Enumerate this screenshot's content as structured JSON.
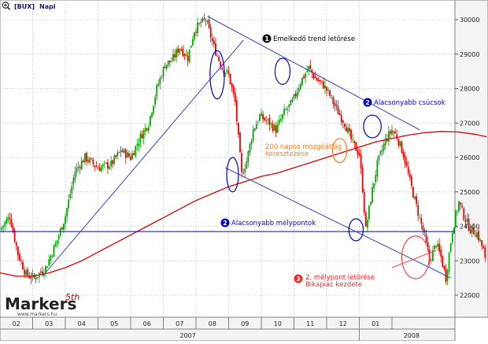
{
  "header": {
    "label": "[BUX]",
    "period": "Napi"
  },
  "icons": {
    "zoom": "zoom-icon"
  },
  "brand": {
    "name": "Markers",
    "superscript": "5th",
    "url": "www.markers.hu"
  },
  "chart_data": {
    "type": "candlestick",
    "y_axis": {
      "ticks": [
        "30000",
        "29000",
        "28000",
        "27000",
        "26000",
        "25000",
        "24000",
        "23000",
        "22000"
      ],
      "range": [
        21700,
        30300
      ],
      "position": "right"
    },
    "x_axis": {
      "month_labels": [
        "02",
        "03",
        "04",
        "05",
        "06",
        "07",
        "08",
        "09",
        "10",
        "11",
        "12",
        "01"
      ],
      "year_labels": [
        "2007",
        "2008"
      ]
    },
    "price_path": [
      [
        0.0,
        23900
      ],
      [
        0.3,
        24300
      ],
      [
        0.55,
        23200
      ],
      [
        0.8,
        22600
      ],
      [
        1.05,
        22500
      ],
      [
        1.4,
        22800
      ],
      [
        1.75,
        23600
      ],
      [
        2.0,
        24300
      ],
      [
        2.3,
        25600
      ],
      [
        2.6,
        26000
      ],
      [
        3.0,
        25700
      ],
      [
        3.4,
        25800
      ],
      [
        3.7,
        26200
      ],
      [
        4.0,
        26000
      ],
      [
        4.3,
        26600
      ],
      [
        4.55,
        27000
      ],
      [
        4.8,
        28000
      ],
      [
        5.05,
        28700
      ],
      [
        5.25,
        28800
      ],
      [
        5.5,
        29200
      ],
      [
        5.75,
        28900
      ],
      [
        5.95,
        29700
      ],
      [
        6.15,
        29900
      ],
      [
        6.3,
        30000
      ],
      [
        6.55,
        29200
      ],
      [
        6.8,
        28600
      ],
      [
        7.0,
        28400
      ],
      [
        7.2,
        27600
      ],
      [
        7.4,
        25500
      ],
      [
        7.55,
        25900
      ],
      [
        7.75,
        26800
      ],
      [
        7.95,
        27200
      ],
      [
        8.25,
        27000
      ],
      [
        8.45,
        26800
      ],
      [
        8.7,
        27300
      ],
      [
        8.95,
        27600
      ],
      [
        9.2,
        28200
      ],
      [
        9.45,
        28600
      ],
      [
        9.65,
        28300
      ],
      [
        9.9,
        28100
      ],
      [
        10.1,
        27800
      ],
      [
        10.3,
        27400
      ],
      [
        10.55,
        27000
      ],
      [
        10.8,
        26400
      ],
      [
        11.0,
        26100
      ],
      [
        11.1,
        25100
      ],
      [
        11.2,
        23900
      ],
      [
        11.35,
        24800
      ],
      [
        11.55,
        25800
      ],
      [
        11.8,
        26500
      ],
      [
        12.0,
        26800
      ],
      [
        12.15,
        26600
      ],
      [
        12.35,
        26100
      ],
      [
        12.55,
        25300
      ],
      [
        12.8,
        24400
      ],
      [
        13.0,
        23700
      ],
      [
        13.15,
        23000
      ],
      [
        13.35,
        23500
      ],
      [
        13.5,
        23100
      ],
      [
        13.65,
        22500
      ],
      [
        13.85,
        23900
      ],
      [
        14.05,
        24700
      ],
      [
        14.2,
        24300
      ],
      [
        14.4,
        23900
      ],
      [
        14.6,
        23800
      ],
      [
        14.8,
        23300
      ],
      [
        14.9,
        22700
      ]
    ],
    "ma200": [
      [
        0.0,
        22650
      ],
      [
        0.5,
        22550
      ],
      [
        1.0,
        22550
      ],
      [
        1.5,
        22650
      ],
      [
        2.0,
        22800
      ],
      [
        2.5,
        23000
      ],
      [
        3.0,
        23250
      ],
      [
        3.5,
        23500
      ],
      [
        4.0,
        23750
      ],
      [
        4.5,
        24000
      ],
      [
        5.0,
        24250
      ],
      [
        5.5,
        24500
      ],
      [
        6.0,
        24750
      ],
      [
        6.5,
        24950
      ],
      [
        7.0,
        25150
      ],
      [
        7.5,
        25300
      ],
      [
        8.0,
        25450
      ],
      [
        8.5,
        25550
      ],
      [
        9.0,
        25700
      ],
      [
        9.5,
        25850
      ],
      [
        10.0,
        26000
      ],
      [
        10.5,
        26150
      ],
      [
        11.0,
        26300
      ],
      [
        11.5,
        26450
      ],
      [
        12.0,
        26550
      ],
      [
        12.5,
        26650
      ],
      [
        13.0,
        26720
      ],
      [
        13.5,
        26750
      ],
      [
        14.0,
        26740
      ],
      [
        14.5,
        26680
      ],
      [
        14.9,
        26600
      ]
    ],
    "horizontal_line": {
      "y": 23850,
      "color": "#0000cc"
    },
    "trend_lines": [
      {
        "name": "rising-trendline",
        "from": [
          1.3,
          22550
        ],
        "to": [
          7.45,
          29400
        ],
        "color": "#3344cc"
      },
      {
        "name": "lower-highs-line",
        "from": [
          6.35,
          30100
        ],
        "to": [
          12.85,
          26800
        ],
        "color": "#3344cc"
      },
      {
        "name": "lower-lows-line",
        "from": [
          6.9,
          25700
        ],
        "to": [
          13.8,
          22500
        ],
        "color": "#3344cc"
      },
      {
        "name": "second-low-break-line",
        "from": [
          12.0,
          22800
        ],
        "to": [
          13.35,
          23300
        ],
        "color": "#ff4444"
      }
    ],
    "ellipses": [
      {
        "name": "trend-break-ellipse",
        "center": [
          6.65,
          28400
        ],
        "rx": 0.22,
        "ry": 700,
        "color": "#0000cc"
      },
      {
        "name": "lower-high-1-ellipse",
        "center": [
          8.65,
          28500
        ],
        "rx": 0.23,
        "ry": 380,
        "color": "#0000cc"
      },
      {
        "name": "lower-high-2-ellipse",
        "center": [
          11.4,
          26900
        ],
        "rx": 0.27,
        "ry": 330,
        "color": "#0000cc"
      },
      {
        "name": "lower-low-1-ellipse",
        "center": [
          7.12,
          25500
        ],
        "rx": 0.18,
        "ry": 500,
        "color": "#0000cc"
      },
      {
        "name": "lower-low-2-ellipse",
        "center": [
          10.9,
          23900
        ],
        "rx": 0.22,
        "ry": 320,
        "color": "#0000cc"
      },
      {
        "name": "ma-cross-ellipse",
        "center": [
          10.4,
          26200
        ],
        "rx": 0.22,
        "ry": 350,
        "color": "#ff7722"
      },
      {
        "name": "second-low-ellipse",
        "center": [
          12.72,
          23100
        ],
        "rx": 0.42,
        "ry": 620,
        "color": "#ff4444"
      }
    ],
    "annotations": [
      {
        "name": "annotation-trend-break",
        "badge": "1",
        "text": "Emelkedő trend letörése",
        "color": "#000000"
      },
      {
        "name": "annotation-lower-highs",
        "badge": "2",
        "text": "Alacsonyabb csúcsok",
        "color": "#0000cc"
      },
      {
        "name": "annotation-lower-lows",
        "badge": "2",
        "text": "Alacsonyabb mélypontok",
        "color": "#0000cc"
      },
      {
        "name": "annotation-ma-cross",
        "badge": "",
        "text": "200 napos mozgóátlag",
        "text2": "keresztezése",
        "color": "#ff7722"
      },
      {
        "name": "annotation-second-low",
        "badge": "3",
        "text": "2. mélypont letörése",
        "text2": "Bikapiac kezdete",
        "color": "#ff2222"
      }
    ],
    "colors": {
      "up": "#00aa00",
      "down": "#ee0000",
      "ma200": "#dd0000",
      "grid": "#999999"
    }
  }
}
